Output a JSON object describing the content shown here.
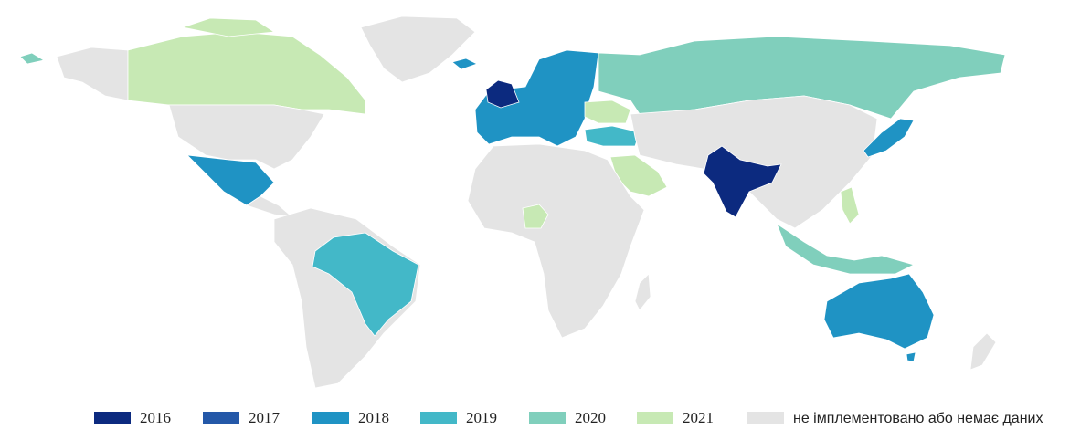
{
  "legend": {
    "items": [
      {
        "label": "2016",
        "color": "#0c2a7f"
      },
      {
        "label": "2017",
        "color": "#2458a8"
      },
      {
        "label": "2018",
        "color": "#1f93c4"
      },
      {
        "label": "2019",
        "color": "#43b8c8"
      },
      {
        "label": "2020",
        "color": "#80cfbc"
      },
      {
        "label": "2021",
        "color": "#c7e9b4"
      },
      {
        "label": "не імплементовано або немає даних",
        "color": "#e4e4e4"
      }
    ]
  }
}
